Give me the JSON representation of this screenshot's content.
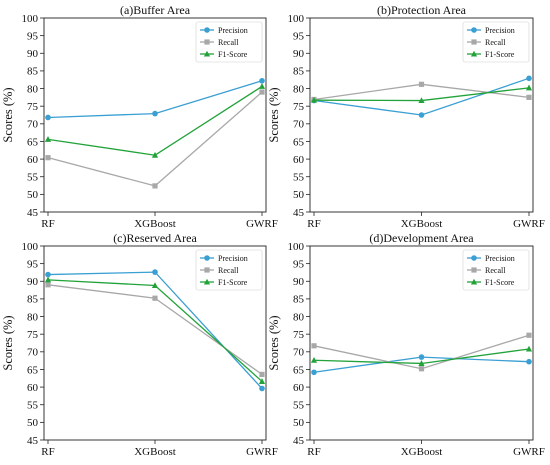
{
  "chart_data": [
    {
      "type": "line",
      "title": "(a)Buffer Area",
      "ylabel": "Scores (%)",
      "xlabel": "",
      "categories": [
        "RF",
        "XGBoost",
        "GWRF"
      ],
      "ylim": [
        45,
        100
      ],
      "yticks": [
        45,
        50,
        55,
        60,
        65,
        70,
        75,
        80,
        85,
        90,
        95,
        100
      ],
      "legend": "top-right",
      "series": [
        {
          "name": "Precision",
          "color": "#3a9fd3",
          "marker": "circle",
          "values": [
            71.8,
            72.9,
            82.2
          ]
        },
        {
          "name": "Recall",
          "color": "#a8a8a8",
          "marker": "square",
          "values": [
            60.4,
            52.4,
            79.0
          ]
        },
        {
          "name": "F1-Score",
          "color": "#22a33a",
          "marker": "triangle",
          "values": [
            65.6,
            61.1,
            80.6
          ]
        }
      ]
    },
    {
      "type": "line",
      "title": "(b)Protection Area",
      "ylabel": "Scores (%)",
      "xlabel": "",
      "categories": [
        "RF",
        "XGBoost",
        "GWRF"
      ],
      "ylim": [
        45,
        100
      ],
      "yticks": [
        45,
        50,
        55,
        60,
        65,
        70,
        75,
        80,
        85,
        90,
        95,
        100
      ],
      "legend": "top-right",
      "series": [
        {
          "name": "Precision",
          "color": "#3a9fd3",
          "marker": "circle",
          "values": [
            76.6,
            72.5,
            82.9
          ]
        },
        {
          "name": "Recall",
          "color": "#a8a8a8",
          "marker": "square",
          "values": [
            76.9,
            81.2,
            77.5
          ]
        },
        {
          "name": "F1-Score",
          "color": "#22a33a",
          "marker": "triangle",
          "values": [
            76.7,
            76.6,
            80.2
          ]
        }
      ]
    },
    {
      "type": "line",
      "title": "(c)Reserved Area",
      "ylabel": "Scores (%)",
      "xlabel": "",
      "categories": [
        "RF",
        "XGBoost",
        "GWRF"
      ],
      "ylim": [
        45,
        100
      ],
      "yticks": [
        45,
        50,
        55,
        60,
        65,
        70,
        75,
        80,
        85,
        90,
        95,
        100
      ],
      "legend": "top-right",
      "series": [
        {
          "name": "Precision",
          "color": "#3a9fd3",
          "marker": "circle",
          "values": [
            91.9,
            92.6,
            59.6
          ]
        },
        {
          "name": "Recall",
          "color": "#a8a8a8",
          "marker": "square",
          "values": [
            89.0,
            85.2,
            63.6
          ]
        },
        {
          "name": "F1-Score",
          "color": "#22a33a",
          "marker": "triangle",
          "values": [
            90.4,
            88.8,
            61.6
          ]
        }
      ]
    },
    {
      "type": "line",
      "title": "(d)Development Area",
      "ylabel": "Scores (%)",
      "xlabel": "",
      "categories": [
        "RF",
        "XGBoost",
        "GWRF"
      ],
      "ylim": [
        45,
        100
      ],
      "yticks": [
        45,
        50,
        55,
        60,
        65,
        70,
        75,
        80,
        85,
        90,
        95,
        100
      ],
      "legend": "top-right",
      "series": [
        {
          "name": "Precision",
          "color": "#3a9fd3",
          "marker": "circle",
          "values": [
            64.2,
            68.5,
            67.2
          ]
        },
        {
          "name": "Recall",
          "color": "#a8a8a8",
          "marker": "square",
          "values": [
            71.7,
            65.2,
            74.7
          ]
        },
        {
          "name": "F1-Score",
          "color": "#22a33a",
          "marker": "triangle",
          "values": [
            67.6,
            66.7,
            70.8
          ]
        }
      ]
    }
  ]
}
